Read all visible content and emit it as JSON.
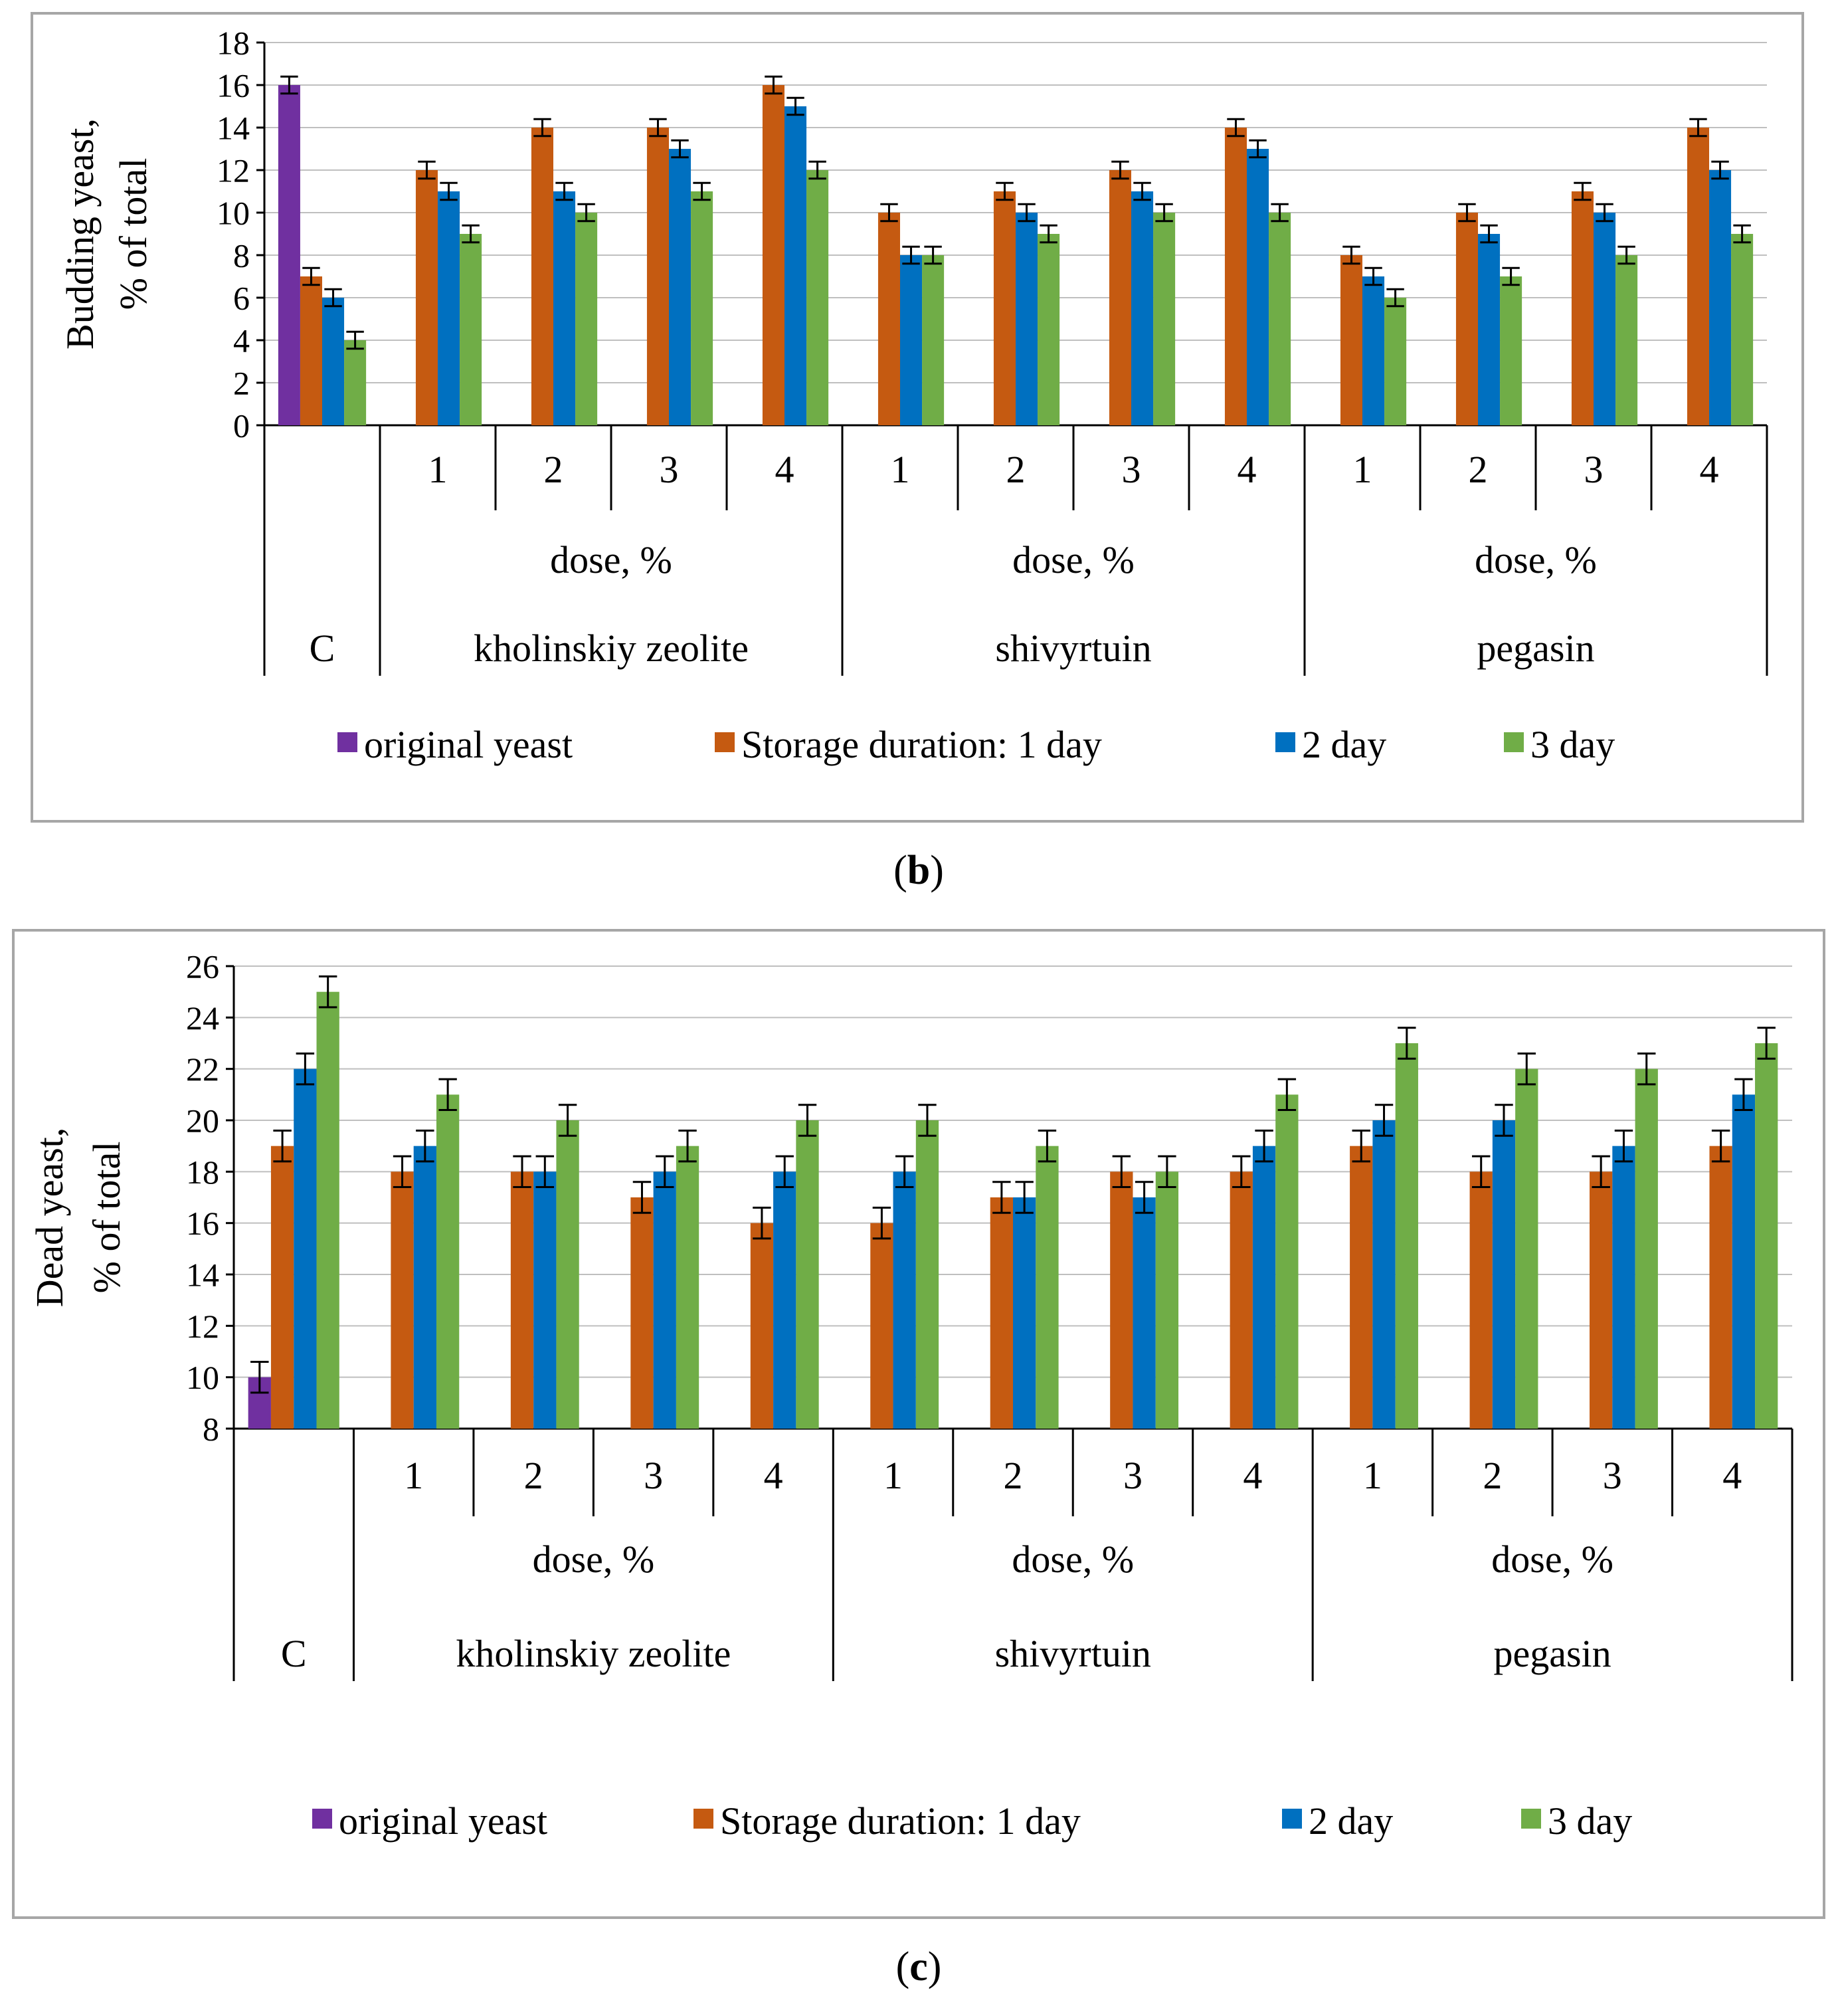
{
  "colors": {
    "original": "#7030a0",
    "day1": "#c55a11",
    "day2": "#0070c0",
    "day3": "#70ad47",
    "axis": "#000000",
    "grid": "#bfbfbf",
    "panel_border": "#a6a6a6"
  },
  "legend": {
    "original": "original yeast",
    "day1": "Storage duration: 1 day",
    "day2": "2 day",
    "day3": "3 day"
  },
  "panels": [
    {
      "caption_open": "(",
      "caption_letter": "b",
      "caption_close": ")",
      "chart_data": {
        "type": "bar",
        "title": "",
        "ylabel_line1": "Budding yeast,",
        "ylabel_line2": "% of total",
        "ylim": [
          0,
          18
        ],
        "yticks": [
          0,
          2,
          4,
          6,
          8,
          10,
          12,
          14,
          16,
          18
        ],
        "grid": true,
        "legend_position": "bottom",
        "control_label": "C",
        "control_values": {
          "original": 16,
          "day1": 7,
          "day2": 6,
          "day3": 4
        },
        "dose_label": "dose, %",
        "groups": [
          {
            "name": "kholinskiy zeolite",
            "doses": [
              "1",
              "2",
              "3",
              "4"
            ],
            "day1": [
              12,
              14,
              14,
              16
            ],
            "day2": [
              11,
              11,
              13,
              15
            ],
            "day3": [
              9,
              10,
              11,
              12
            ]
          },
          {
            "name": "shivyrtuin",
            "doses": [
              "1",
              "2",
              "3",
              "4"
            ],
            "day1": [
              10,
              11,
              12,
              14
            ],
            "day2": [
              8,
              10,
              11,
              13
            ],
            "day3": [
              8,
              9,
              10,
              10
            ]
          },
          {
            "name": "pegasin",
            "doses": [
              "1",
              "2",
              "3",
              "4"
            ],
            "day1": [
              8,
              10,
              11,
              14
            ],
            "day2": [
              7,
              9,
              10,
              12
            ],
            "day3": [
              6,
              7,
              8,
              9
            ]
          }
        ],
        "error": 0.4
      }
    },
    {
      "caption_open": "(",
      "caption_letter": "c",
      "caption_close": ")",
      "chart_data": {
        "type": "bar",
        "title": "",
        "ylabel_line1": "Dead yeast,",
        "ylabel_line2": "% of total",
        "ylim": [
          8,
          26
        ],
        "yticks": [
          8,
          10,
          12,
          14,
          16,
          18,
          20,
          22,
          24,
          26
        ],
        "grid": true,
        "legend_position": "bottom",
        "control_label": "C",
        "control_values": {
          "original": 10,
          "day1": 19,
          "day2": 22,
          "day3": 25
        },
        "dose_label": "dose, %",
        "groups": [
          {
            "name": "kholinskiy zeolite",
            "doses": [
              "1",
              "2",
              "3",
              "4"
            ],
            "day1": [
              18,
              18,
              17,
              16
            ],
            "day2": [
              19,
              18,
              18,
              18
            ],
            "day3": [
              21,
              20,
              19,
              20
            ]
          },
          {
            "name": "shivyrtuin",
            "doses": [
              "1",
              "2",
              "3",
              "4"
            ],
            "day1": [
              16,
              17,
              18,
              18
            ],
            "day2": [
              18,
              17,
              17,
              19
            ],
            "day3": [
              20,
              19,
              18,
              21
            ]
          },
          {
            "name": "pegasin",
            "doses": [
              "1",
              "2",
              "3",
              "4"
            ],
            "day1": [
              19,
              18,
              18,
              19
            ],
            "day2": [
              20,
              20,
              19,
              21
            ],
            "day3": [
              23,
              22,
              22,
              23
            ]
          }
        ],
        "error": 0.6
      }
    }
  ]
}
